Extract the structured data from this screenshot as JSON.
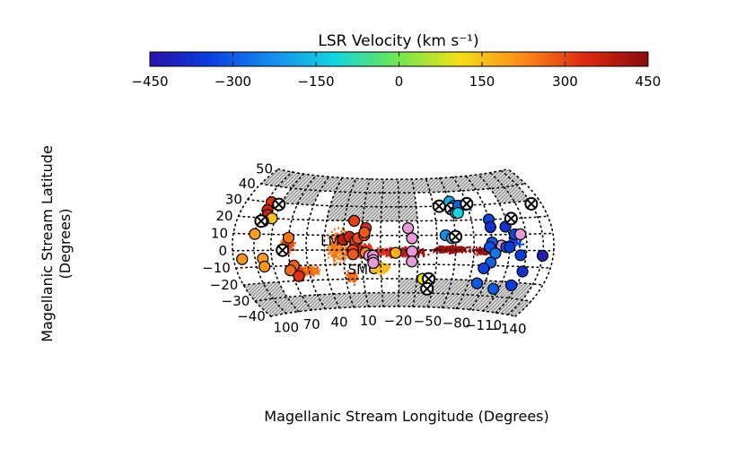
{
  "chart_data": {
    "type": "scatter",
    "projection": "hammer-aitoff",
    "colorbar": {
      "title": "LSR Velocity (km s⁻¹)",
      "min": -450,
      "max": 450,
      "ticks": [
        "−450",
        "−300",
        "−150",
        "0",
        "150",
        "300",
        "450"
      ]
    },
    "xlabel": "Magellanic Stream Longitude (Degrees)",
    "ylabel_line1": "Magellanic Stream Latitude",
    "ylabel_line2": "(Degrees)",
    "lon_range": [
      -150,
      120
    ],
    "lat_range": [
      -40,
      50
    ],
    "lon_grid": [
      120,
      100,
      85,
      70,
      55,
      40,
      25,
      10,
      -5,
      -20,
      -35,
      -50,
      -65,
      -80,
      -95,
      -110,
      -125,
      -140,
      -150
    ],
    "lat_grid": [
      -40,
      -30,
      -20,
      -10,
      0,
      10,
      20,
      30,
      40,
      50
    ],
    "lon_tick_labels": [
      {
        "lon": 100,
        "text": "100"
      },
      {
        "lon": 70,
        "text": "70"
      },
      {
        "lon": 40,
        "text": "40"
      },
      {
        "lon": 10,
        "text": "10"
      },
      {
        "lon": -20,
        "text": "−20"
      },
      {
        "lon": -50,
        "text": "−50"
      },
      {
        "lon": -80,
        "text": "−80"
      },
      {
        "lon": -110,
        "text": "−110"
      },
      {
        "lon": -140,
        "text": "−140"
      }
    ],
    "lat_tick_labels": [
      {
        "lat": 50,
        "text": "50"
      },
      {
        "lat": 40,
        "text": "40"
      },
      {
        "lat": 30,
        "text": "30"
      },
      {
        "lat": 20,
        "text": "20"
      },
      {
        "lat": 10,
        "text": "10"
      },
      {
        "lat": 0,
        "text": "0"
      },
      {
        "lat": -10,
        "text": "−10"
      },
      {
        "lat": -20,
        "text": "−20"
      },
      {
        "lat": -30,
        "text": "−30"
      },
      {
        "lat": -40,
        "text": "−40"
      }
    ],
    "annotations": [
      {
        "text": "LMC",
        "lon": 20,
        "lat": 3
      },
      {
        "text": "SMC",
        "lon": -2,
        "lat": -17
      }
    ],
    "masked_regions": [
      {
        "lon_min": -150,
        "lon_max": 120,
        "lat_min": 40,
        "lat_max": 50
      },
      {
        "lon_min": -35,
        "lon_max": 40,
        "lat_min": 20,
        "lat_max": 40
      },
      {
        "lon_min": -140,
        "lon_max": -110,
        "lat_min": 30,
        "lat_max": 40
      },
      {
        "lon_min": -150,
        "lon_max": 120,
        "lat_min": -40,
        "lat_max": -30
      },
      {
        "lon_min": 85,
        "lon_max": 120,
        "lat_min": -30,
        "lat_max": -20
      },
      {
        "lon_min": -65,
        "lon_max": -20,
        "lat_min": -30,
        "lat_max": -20
      },
      {
        "lon_min": -140,
        "lon_max": -65,
        "lat_min": -30,
        "lat_max": -20
      },
      {
        "lon_min": 55,
        "lon_max": 85,
        "lat_min": 30,
        "lat_max": 40
      }
    ],
    "sightlines": [
      {
        "lon": 95,
        "lat": 30,
        "v": 330
      },
      {
        "lon": 95,
        "lat": 25,
        "v": 360
      },
      {
        "lon": 87,
        "lat": 29,
        "v": null
      },
      {
        "lon": 93,
        "lat": 22,
        "v": 370
      },
      {
        "lon": 88,
        "lat": 20,
        "v": 150
      },
      {
        "lon": 95,
        "lat": 18,
        "v": 200
      },
      {
        "lon": 97,
        "lat": 18,
        "v": null
      },
      {
        "lon": 100,
        "lat": 10,
        "v": 200
      },
      {
        "lon": 70,
        "lat": 8,
        "v": 250
      },
      {
        "lon": 75,
        "lat": 0,
        "v": null
      },
      {
        "lon": 112,
        "lat": -5,
        "v": 210
      },
      {
        "lon": 93,
        "lat": -5,
        "v": 200
      },
      {
        "lon": 93,
        "lat": -10,
        "v": 210
      },
      {
        "lon": 67,
        "lat": -10,
        "v": 270
      },
      {
        "lon": 71,
        "lat": -13,
        "v": 260
      },
      {
        "lon": 65,
        "lat": -17,
        "v": 330
      },
      {
        "lon": 17,
        "lat": 20,
        "v": 310
      },
      {
        "lon": 25,
        "lat": 7,
        "v": 380
      },
      {
        "lon": 20,
        "lat": 9,
        "v": 360
      },
      {
        "lon": 15,
        "lat": 6,
        "v": 300
      },
      {
        "lon": 13,
        "lat": 8,
        "v": 290
      },
      {
        "lon": 8,
        "lat": 10,
        "v": 280
      },
      {
        "lon": 7,
        "lat": 15,
        "v": 330
      },
      {
        "lon": 8,
        "lat": 12,
        "v": 280
      },
      {
        "lon": 17,
        "lat": 0,
        "v": 300
      },
      {
        "lon": 17,
        "lat": -3,
        "v": 280
      },
      {
        "lon": 7,
        "lat": -2,
        "v": 230
      },
      {
        "lon": 4,
        "lat": -4,
        "v": "pink"
      },
      {
        "lon": 1,
        "lat": -4,
        "v": "pink"
      },
      {
        "lon": 1,
        "lat": -7,
        "v": "pink"
      },
      {
        "lon": 1,
        "lat": -9,
        "v": "pink"
      },
      {
        "lon": -17,
        "lat": -2,
        "v": 170
      },
      {
        "lon": -27,
        "lat": 15,
        "v": "pink"
      },
      {
        "lon": -30,
        "lat": 8,
        "v": "pink"
      },
      {
        "lon": -30,
        "lat": -1,
        "v": "pink"
      },
      {
        "lon": -30,
        "lat": -8,
        "v": "pink"
      },
      {
        "lon": -40,
        "lat": -20,
        "v": 110
      },
      {
        "lon": -45,
        "lat": -20,
        "v": null
      },
      {
        "lon": -45,
        "lat": -27,
        "v": null
      },
      {
        "lon": -55,
        "lat": 30,
        "v": null
      },
      {
        "lon": -65,
        "lat": 33,
        "v": -170
      },
      {
        "lon": -68,
        "lat": 30,
        "v": -200
      },
      {
        "lon": -65,
        "lat": 28,
        "v": null
      },
      {
        "lon": -68,
        "lat": 25,
        "v": -230
      },
      {
        "lon": -72,
        "lat": 30,
        "v": -290
      },
      {
        "lon": -70,
        "lat": 25,
        "v": -110
      },
      {
        "lon": -80,
        "lat": 31,
        "v": null
      },
      {
        "lon": -57,
        "lat": 10,
        "v": -230
      },
      {
        "lon": -62,
        "lat": 8,
        "v": -160
      },
      {
        "lon": -65,
        "lat": 9,
        "v": null
      },
      {
        "lon": -95,
        "lat": 20,
        "v": -330
      },
      {
        "lon": -95,
        "lat": 15,
        "v": -370
      },
      {
        "lon": -108,
        "lat": 15,
        "v": -360
      },
      {
        "lon": -115,
        "lat": 20,
        "v": null
      },
      {
        "lon": -115,
        "lat": 10,
        "v": -320
      },
      {
        "lon": -120,
        "lat": 10,
        "v": "pink"
      },
      {
        "lon": -103,
        "lat": 3,
        "v": "pink"
      },
      {
        "lon": -107,
        "lat": 2,
        "v": -300
      },
      {
        "lon": -110,
        "lat": 2,
        "v": -350
      },
      {
        "lon": -95,
        "lat": 5,
        "v": -300
      },
      {
        "lon": -93,
        "lat": 2,
        "v": -310
      },
      {
        "lon": -98,
        "lat": -2,
        "v": -260
      },
      {
        "lon": -95,
        "lat": -8,
        "v": -290
      },
      {
        "lon": -90,
        "lat": -12,
        "v": -330
      },
      {
        "lon": -120,
        "lat": -3,
        "v": -340
      },
      {
        "lon": -140,
        "lat": -3,
        "v": -420
      },
      {
        "lon": -140,
        "lat": 28,
        "v": null
      },
      {
        "lon": -125,
        "lat": -13,
        "v": -370
      },
      {
        "lon": -120,
        "lat": -22,
        "v": -340
      },
      {
        "lon": -105,
        "lat": -25,
        "v": -300
      },
      {
        "lon": -88,
        "lat": -22,
        "v": -300
      }
    ]
  }
}
